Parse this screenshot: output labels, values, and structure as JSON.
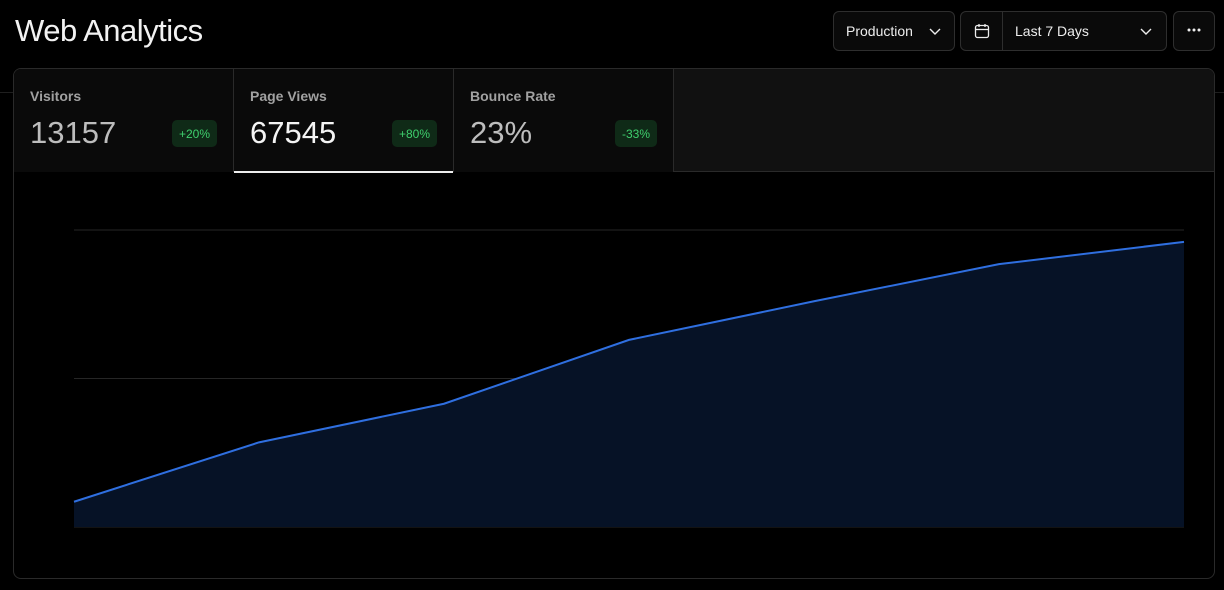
{
  "header": {
    "title": "Web Analytics",
    "environment": "Production",
    "date_range": "Last 7 Days",
    "icons": {
      "calendar": "calendar-icon",
      "chevron": "chevron-down-icon",
      "more": "more-horizontal-icon"
    }
  },
  "tabs": [
    {
      "label": "Visitors",
      "value": "13157",
      "change": "+20%"
    },
    {
      "label": "Page Views",
      "value": "67545",
      "change": "+80%"
    },
    {
      "label": "Bounce Rate",
      "value": "23%",
      "change": "-33%"
    }
  ],
  "active_tab": "Page Views",
  "colors": {
    "line": "#2f6fe0",
    "area": "#061226",
    "grid": "#262626",
    "badge_text": "#3fcf6d",
    "badge_bg": "#0f2a17"
  },
  "chart_data": {
    "type": "area",
    "x": [
      1,
      2,
      3,
      4,
      5,
      6,
      7
    ],
    "series": [
      {
        "values": [
          1.7,
          5.7,
          8.3,
          12.6,
          15.2,
          17.7,
          19.2
        ]
      }
    ],
    "ylim": [
      0,
      20
    ],
    "grid": true,
    "xlabel": "",
    "ylabel": ""
  }
}
